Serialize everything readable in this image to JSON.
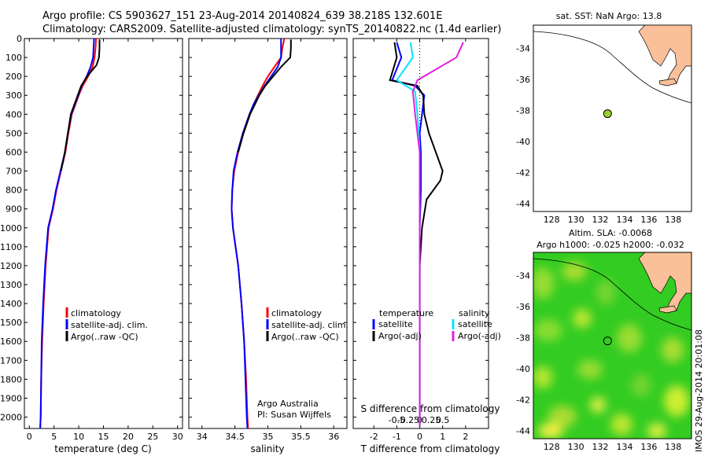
{
  "header": {
    "line1": "Argo profile: CS 5903627_151 23-Aug-2014 20140824_639 38.218S 132.601E",
    "line2": "Climatology: CARS2009. Satellite-adjusted climatology: synTS_20140822.nc (1.4d earlier)"
  },
  "colors": {
    "climatology": "#ff0000",
    "satellite": "#0000ff",
    "argo": "#000000",
    "sal_satellite": "#00e5ff",
    "sal_argo": "#e020e0",
    "land": "#f9c09a",
    "float": "#9acd32"
  },
  "chart_data": [
    {
      "type": "line",
      "id": "temperature",
      "xlabel": "temperature (deg C)",
      "ylabel": "",
      "xlim": [
        -1,
        31
      ],
      "ylim": [
        2060,
        0
      ],
      "y_reversed": true,
      "xticks": [
        "0",
        "5",
        "10",
        "15",
        "20",
        "25",
        "30"
      ],
      "xtick_values": [
        0,
        5,
        10,
        15,
        20,
        25,
        30
      ],
      "yticks": [
        "0",
        "100",
        "200",
        "300",
        "400",
        "500",
        "600",
        "700",
        "800",
        "900",
        "1000",
        "1100",
        "1200",
        "1300",
        "1400",
        "1500",
        "1600",
        "1700",
        "1800",
        "1900",
        "2000"
      ],
      "ytick_values": [
        0,
        100,
        200,
        300,
        400,
        500,
        600,
        700,
        800,
        900,
        1000,
        1100,
        1200,
        1300,
        1400,
        1500,
        1600,
        1700,
        1800,
        1900,
        2000
      ],
      "legend": [
        "climatology",
        "satellite-adj. clim.",
        "Argo(..raw -QC)"
      ],
      "series": [
        {
          "name": "climatology",
          "color": "#ff0000",
          "x": [
            13.5,
            13.4,
            13.2,
            12.8,
            11.9,
            10.8,
            10.0,
            9.3,
            8.6,
            7.9,
            7.3,
            6.4,
            5.5,
            4.8,
            3.9,
            3.3,
            2.9,
            2.6,
            2.4,
            2.3,
            2.2
          ],
          "y": [
            0,
            50,
            100,
            150,
            200,
            250,
            300,
            350,
            400,
            500,
            600,
            700,
            800,
            900,
            1000,
            1200,
            1400,
            1600,
            1800,
            2000,
            2060
          ]
        },
        {
          "name": "satellite-adj. clim.",
          "color": "#0000ff",
          "x": [
            13.1,
            13.0,
            12.9,
            12.4,
            11.6,
            10.6,
            9.9,
            9.2,
            8.5,
            7.8,
            7.2,
            6.3,
            5.4,
            4.7,
            3.8,
            3.2,
            2.8,
            2.5,
            2.4,
            2.3,
            2.2
          ],
          "y": [
            0,
            50,
            100,
            150,
            200,
            250,
            300,
            350,
            400,
            500,
            600,
            700,
            800,
            900,
            1000,
            1200,
            1400,
            1600,
            1800,
            2000,
            2060
          ]
        },
        {
          "name": "Argo(..raw -QC)",
          "color": "#000000",
          "x": [
            14.2,
            14.2,
            14.1,
            13.6,
            11.7,
            10.5,
            9.8,
            9.1,
            8.4,
            7.8,
            7.2,
            6.4
          ],
          "y": [
            5,
            50,
            100,
            140,
            200,
            250,
            300,
            350,
            400,
            500,
            600,
            700
          ]
        }
      ]
    },
    {
      "type": "line",
      "id": "salinity",
      "xlabel": "salinity",
      "xlim": [
        33.8,
        36.2
      ],
      "ylim": [
        2060,
        0
      ],
      "y_reversed": true,
      "xticks": [
        "34",
        "34.5",
        "35",
        "35.5",
        "36"
      ],
      "xtick_values": [
        34,
        34.5,
        35,
        35.5,
        36
      ],
      "legend": [
        "climatology",
        "satellite-adj. clim.",
        "Argo(..raw -QC)"
      ],
      "annotation": [
        "Argo Australia",
        "PI: Susan Wijffels"
      ],
      "series": [
        {
          "name": "climatology",
          "color": "#ff0000",
          "x": [
            35.25,
            35.22,
            35.2,
            35.1,
            35.0,
            34.92,
            34.85,
            34.78,
            34.73,
            34.63,
            34.55,
            34.49,
            34.46,
            34.45,
            34.47,
            34.55,
            34.6,
            34.64,
            34.67,
            34.69,
            34.7
          ],
          "y": [
            0,
            50,
            100,
            150,
            200,
            250,
            300,
            350,
            400,
            500,
            600,
            700,
            800,
            900,
            1000,
            1200,
            1400,
            1600,
            1800,
            2000,
            2060
          ]
        },
        {
          "name": "satellite-adj. clim.",
          "color": "#0000ff",
          "x": [
            35.2,
            35.2,
            35.2,
            35.15,
            35.05,
            34.95,
            34.86,
            34.78,
            34.72,
            34.62,
            34.54,
            34.48,
            34.46,
            34.45,
            34.47,
            34.55,
            34.6,
            34.64,
            34.66,
            34.68,
            34.69
          ],
          "y": [
            0,
            50,
            100,
            150,
            200,
            250,
            300,
            350,
            400,
            500,
            600,
            700,
            800,
            900,
            1000,
            1200,
            1400,
            1600,
            1800,
            2000,
            2060
          ]
        },
        {
          "name": "Argo(..raw -QC)",
          "color": "#000000",
          "x": [
            35.35,
            35.35,
            35.34,
            35.2,
            35.08,
            34.96,
            34.87,
            34.8,
            34.73,
            34.63,
            34.55
          ],
          "y": [
            5,
            50,
            100,
            150,
            200,
            250,
            300,
            350,
            400,
            500,
            600
          ]
        }
      ]
    },
    {
      "type": "line",
      "id": "differences",
      "xlabel": "T difference from climatology",
      "xlabel_top": "S difference from climatology",
      "xlim": [
        -2.9,
        3.0
      ],
      "ylim": [
        2060,
        0
      ],
      "y_reversed": true,
      "xticks": [
        "-2",
        "-1",
        "0",
        "1",
        "2"
      ],
      "xtick_values": [
        -2,
        -1,
        0,
        1,
        2
      ],
      "xticks_top": [
        "-0.5",
        "-0.25",
        "0",
        "0.25",
        "0.5"
      ],
      "legend_temperature_title": "temperature",
      "legend_salinity_title": "salinity",
      "legend_temperature": [
        "satellite",
        "Argo(-adj)"
      ],
      "legend_salinity": [
        "satellite",
        "Argo(-adj)"
      ],
      "series": [
        {
          "name": "satellite",
          "group": "temperature",
          "color": "#0000ff",
          "x": [
            -1.0,
            -0.8,
            -1.2,
            -0.2,
            0.2,
            0.1,
            0,
            0.05,
            0.05,
            0,
            0,
            0,
            0,
            0
          ],
          "y": [
            20,
            100,
            220,
            250,
            300,
            400,
            500,
            600,
            800,
            1000,
            1200,
            1500,
            1800,
            2050
          ]
        },
        {
          "name": "Argo(-adj)",
          "group": "temperature",
          "color": "#000000",
          "x": [
            -1.1,
            -1.0,
            -1.3,
            -0.1,
            0.15,
            0.2,
            0.4,
            0.7,
            1.0,
            0.9,
            0.3,
            0.1,
            0,
            0,
            0
          ],
          "y": [
            20,
            100,
            220,
            250,
            300,
            400,
            500,
            600,
            700,
            750,
            850,
            1000,
            1200,
            1500,
            2050
          ]
        },
        {
          "name": "satellite",
          "group": "salinity",
          "color": "#00e5ff",
          "x": [
            -0.4,
            -0.3,
            -1.0,
            -0.2,
            -0.1,
            0,
            0,
            0
          ],
          "y": [
            20,
            100,
            220,
            280,
            400,
            600,
            1000,
            2050
          ]
        },
        {
          "name": "Argo(-adj)",
          "group": "salinity",
          "color": "#e020e0",
          "x": [
            1.9,
            1.6,
            -0.1,
            -0.3,
            -0.2,
            0,
            0
          ],
          "y": [
            20,
            100,
            220,
            280,
            400,
            600,
            2050
          ]
        }
      ]
    },
    {
      "type": "scatter",
      "id": "sst-map",
      "title": "sat. SST: NaN Argo: 13.8",
      "xticks": [
        "128",
        "130",
        "132",
        "134",
        "136",
        "138"
      ],
      "xtick_values": [
        128,
        130,
        132,
        134,
        136,
        138
      ],
      "yticks": [
        "-34",
        "-36",
        "-38",
        "-40",
        "-42",
        "-44"
      ],
      "ytick_values": [
        -34,
        -36,
        -38,
        -40,
        -42,
        -44
      ],
      "xlim": [
        126.5,
        139.5
      ],
      "ylim": [
        -44.5,
        -32.5
      ],
      "x": [
        132.6
      ],
      "y": [
        -38.2
      ]
    },
    {
      "type": "heatmap",
      "id": "sla-map",
      "title": "Altim. SLA: -0.0068",
      "subtitle": "Argo h1000: -0.025 h2000: -0.032",
      "xticks": [
        "128",
        "130",
        "132",
        "134",
        "136",
        "138"
      ],
      "xtick_values": [
        128,
        130,
        132,
        134,
        136,
        138
      ],
      "yticks": [
        "-34",
        "-36",
        "-38",
        "-40",
        "-42",
        "-44"
      ],
      "ytick_values": [
        -34,
        -36,
        -38,
        -40,
        -42,
        -44
      ],
      "xlim": [
        126.5,
        139.5
      ],
      "ylim": [
        -44.5,
        -32.5
      ],
      "x": [
        132.6
      ],
      "y": [
        -38.2
      ]
    }
  ],
  "watermark": "IMOS 29-Aug-2014 20:01:08"
}
